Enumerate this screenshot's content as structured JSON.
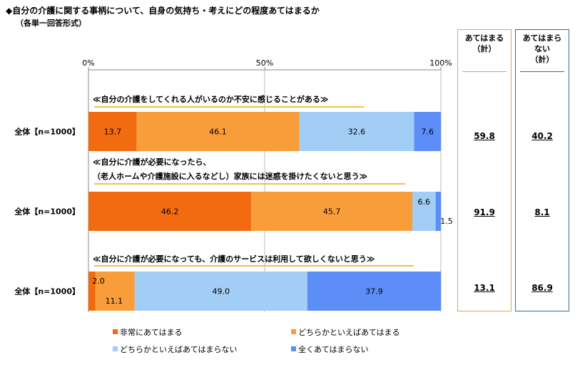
{
  "title": "◆自分の介護に関する事柄について、自身の気持ち・考えにどの程度あてはまるか",
  "subtitle": "（各単一回答形式）",
  "chart_data": {
    "type": "bar",
    "stacked": "100%",
    "orientation": "horizontal",
    "axis": {
      "ticks": [
        "0%",
        "50%",
        "100%"
      ],
      "range": [
        0,
        100
      ]
    },
    "legend_position": "bottom",
    "series": [
      {
        "name": "非常にあてはまる",
        "color": "#f26b10"
      },
      {
        "name": "どちらかといえばあてはまる",
        "color": "#f99d3a"
      },
      {
        "name": "どちらかといえばあてはまらない",
        "color": "#a2cdf4"
      },
      {
        "name": "全くあてはまらない",
        "color": "#5d8ef7"
      }
    ],
    "rows": [
      {
        "question": "≪自分の介護をしてくれる人がいるのか不安に感じることがある≫",
        "label": "全体【n=1000】",
        "values": [
          13.7,
          46.1,
          32.6,
          7.6
        ],
        "value_labels": [
          "13.7",
          "46.1",
          "32.6",
          "7.6"
        ]
      },
      {
        "question": "≪自分に介護が必要になったら、\n（老人ホームや介護施設に入るなどし）家族には迷惑を掛けたくないと思う≫",
        "label": "全体【n=1000】",
        "values": [
          46.2,
          45.7,
          6.6,
          1.5
        ],
        "value_labels": [
          "46.2",
          "45.7",
          "6.6",
          "1.5"
        ]
      },
      {
        "question": "≪自分に介護が必要になっても、介護のサービスは利用して欲しくないと思う≫",
        "label": "全体【n=1000】",
        "values": [
          2.0,
          11.1,
          49.0,
          37.9
        ],
        "value_labels": [
          "2.0",
          "11.1",
          "49.0",
          "37.9"
        ]
      }
    ],
    "totals": {
      "yes_header": "あてはまる\n（計）",
      "no_header": "あてはまら\nない\n（計）",
      "yes": [
        "59.8",
        "91.9",
        "13.1"
      ],
      "no": [
        "40.2",
        "8.1",
        "86.9"
      ]
    }
  }
}
